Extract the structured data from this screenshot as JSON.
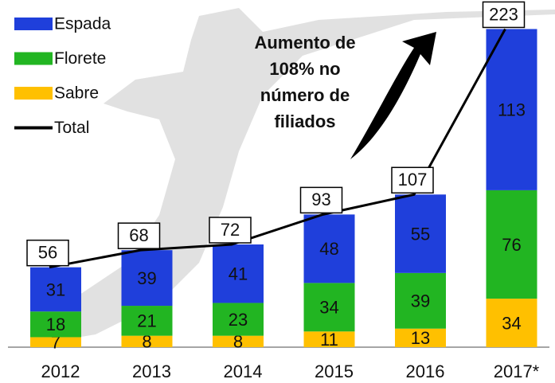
{
  "chart_data": {
    "type": "bar",
    "stacked": true,
    "categories": [
      "2012",
      "2013",
      "2014",
      "2015",
      "2016",
      "2017*"
    ],
    "series": [
      {
        "name": "Espada",
        "color": "#1f3fdb",
        "values": [
          31,
          39,
          41,
          48,
          55,
          113
        ]
      },
      {
        "name": "Florete",
        "color": "#22b522",
        "values": [
          18,
          21,
          23,
          34,
          39,
          76
        ]
      },
      {
        "name": "Sabre",
        "color": "#ffc000",
        "values": [
          7,
          8,
          8,
          11,
          13,
          34
        ]
      },
      {
        "name": "Total",
        "color": "#000000",
        "type": "line",
        "values": [
          56,
          68,
          72,
          93,
          107,
          223
        ]
      }
    ],
    "ylim": [
      0,
      240
    ],
    "annotation": [
      "Aumento de",
      "108% no",
      "número de",
      "filiados"
    ]
  }
}
